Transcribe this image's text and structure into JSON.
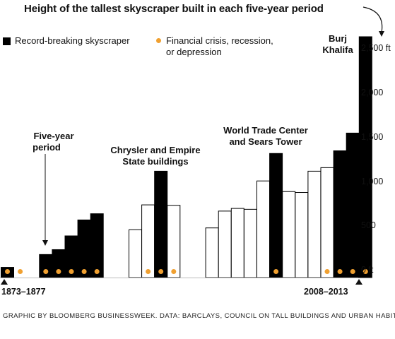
{
  "title": "Height of the tallest skyscraper built in each five-year period",
  "legend": {
    "record_label": "Record-breaking skyscraper",
    "crisis_label_line1": "Financial crisis, recession,",
    "crisis_label_line2": "or depression"
  },
  "annotations": {
    "five_year_line1": "Five-year",
    "five_year_line2": "period",
    "chrysler_line1": "Chrysler and Empire",
    "chrysler_line2": "State buildings",
    "wtc_line1": "World Trade Center",
    "wtc_line2": "and Sears Tower",
    "burj_line1": "Burj",
    "burj_line2": "Khalifa"
  },
  "axis": {
    "start_label": "1873–1877",
    "end_label": "2008–2013"
  },
  "source": "GRAPHIC BY BLOOMBERG BUSINESSWEEK. DATA: BARCLAYS, COUNCIL ON TALL BUILDINGS AND URBAN HABITAT",
  "colors": {
    "record": "#000000",
    "other": "#ffffff",
    "crisis": "#f0a030"
  },
  "chart_data": {
    "type": "bar",
    "title": "Height of the tallest skyscraper built in each five-year period",
    "ylabel": "",
    "ylim": [
      0,
      2717
    ],
    "yticks": [
      {
        "value": 0,
        "label": "0 ft"
      },
      {
        "value": 500,
        "label": "500"
      },
      {
        "value": 1000,
        "label": "1,000"
      },
      {
        "value": 1500,
        "label": "1,500"
      },
      {
        "value": 2000,
        "label": "2,000"
      },
      {
        "value": 2500,
        "label": "2,500 ft"
      }
    ],
    "x_start": "1873–1877",
    "x_end": "2008–2013",
    "values": [
      115,
      0,
      0,
      260,
      315,
      470,
      650,
      720,
      0,
      0,
      540,
      820,
      1200,
      815,
      0,
      0,
      560,
      750,
      780,
      770,
      1090,
      1400,
      970,
      960,
      1200,
      1240,
      1430,
      1630,
      2717
    ],
    "record": [
      true,
      false,
      false,
      true,
      true,
      true,
      true,
      true,
      false,
      false,
      false,
      false,
      true,
      false,
      false,
      false,
      false,
      false,
      false,
      false,
      false,
      true,
      false,
      false,
      false,
      false,
      true,
      true,
      true
    ],
    "crisis": [
      true,
      true,
      false,
      true,
      true,
      true,
      true,
      true,
      false,
      false,
      false,
      true,
      true,
      true,
      false,
      false,
      false,
      false,
      false,
      false,
      false,
      true,
      false,
      false,
      false,
      true,
      true,
      true,
      true
    ],
    "grid": false,
    "legend_position": "top-left"
  }
}
